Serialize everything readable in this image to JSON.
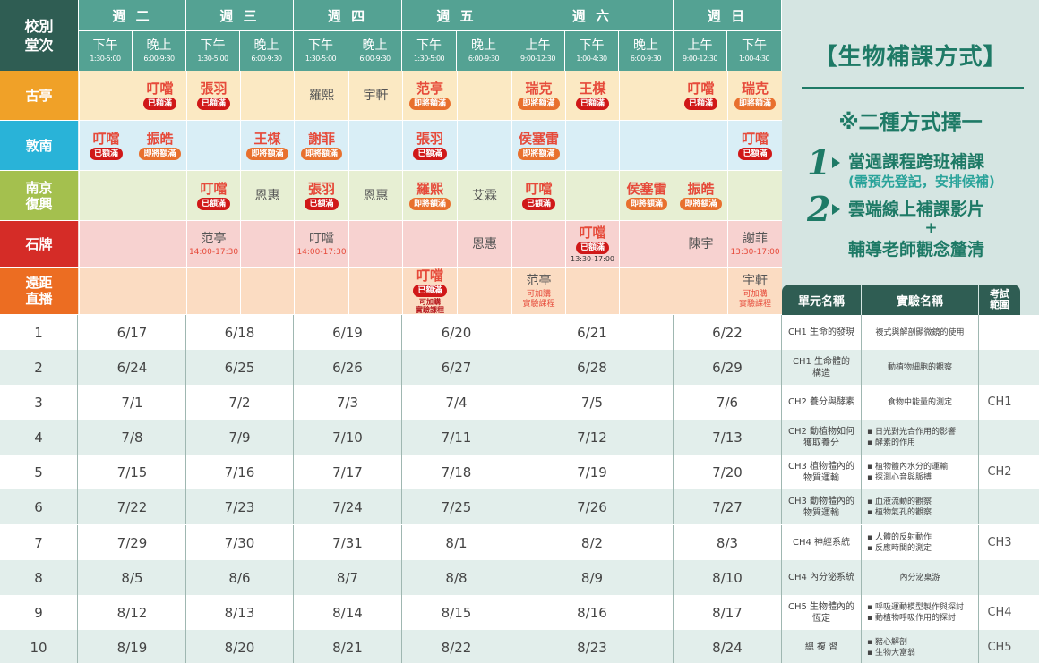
{
  "corner": "校別\n堂次",
  "days": [
    {
      "label": "週 二",
      "sessions": [
        {
          "name": "下午",
          "time": "1:30-5:00"
        },
        {
          "name": "晚上",
          "time": "6:00-9:30"
        }
      ]
    },
    {
      "label": "週 三",
      "sessions": [
        {
          "name": "下午",
          "time": "1:30-5:00"
        },
        {
          "name": "晚上",
          "time": "6:00-9:30"
        }
      ]
    },
    {
      "label": "週 四",
      "sessions": [
        {
          "name": "下午",
          "time": "1:30-5:00"
        },
        {
          "name": "晚上",
          "time": "6:00-9:30"
        }
      ]
    },
    {
      "label": "週 五",
      "sessions": [
        {
          "name": "下午",
          "time": "1:30-5:00"
        },
        {
          "name": "晚上",
          "time": "6:00-9:30"
        }
      ]
    },
    {
      "label": "週 六",
      "sessions": [
        {
          "name": "上午",
          "time": "9:00-12:30"
        },
        {
          "name": "下午",
          "time": "1:00-4:30"
        },
        {
          "name": "晚上",
          "time": "6:00-9:30"
        }
      ]
    },
    {
      "label": "週 日",
      "sessions": [
        {
          "name": "上午",
          "time": "9:00-12:30"
        },
        {
          "name": "下午",
          "time": "1:00-4:30"
        }
      ]
    }
  ],
  "campuses": [
    {
      "name": "古亭",
      "color": "#f0a128",
      "bg": "#fbe9c3",
      "cells": [
        null,
        {
          "t": "叮噹",
          "b": "已額滿",
          "bt": "full"
        },
        {
          "t": "張羽",
          "b": "已額滿",
          "bt": "full"
        },
        null,
        {
          "t": "羅熙",
          "plain": true
        },
        {
          "t": "宇軒",
          "plain": true
        },
        {
          "t": "范亭",
          "b": "即將額滿",
          "bt": "near"
        },
        null,
        {
          "t": "瑞克",
          "b": "即將額滿",
          "bt": "near"
        },
        {
          "t": "王楳",
          "b": "已額滿",
          "bt": "full"
        },
        null,
        {
          "t": "叮噹",
          "b": "已額滿",
          "bt": "full"
        },
        {
          "t": "瑞克",
          "b": "即將額滿",
          "bt": "near"
        }
      ]
    },
    {
      "name": "敦南",
      "color": "#29b3d8",
      "bg": "#d9eef6",
      "cells": [
        {
          "t": "叮噹",
          "b": "已額滿",
          "bt": "full"
        },
        {
          "t": "振皓",
          "b": "即將額滿",
          "bt": "near"
        },
        null,
        {
          "t": "王楳",
          "b": "即將額滿",
          "bt": "near"
        },
        {
          "t": "謝菲",
          "b": "即將額滿",
          "bt": "near"
        },
        null,
        {
          "t": "張羽",
          "b": "已額滿",
          "bt": "full"
        },
        null,
        {
          "t": "侯塞雷",
          "b": "即將額滿",
          "bt": "near"
        },
        null,
        null,
        null,
        {
          "t": "叮噹",
          "b": "已額滿",
          "bt": "full"
        }
      ]
    },
    {
      "name": "南京\n復興",
      "color": "#a4c04e",
      "bg": "#e7efd3",
      "cells": [
        null,
        null,
        {
          "t": "叮噹",
          "b": "已額滿",
          "bt": "full"
        },
        {
          "t": "恩惠",
          "plain": true
        },
        {
          "t": "張羽",
          "b": "已額滿",
          "bt": "full"
        },
        {
          "t": "恩惠",
          "plain": true
        },
        {
          "t": "羅熙",
          "b": "即將額滿",
          "bt": "near"
        },
        {
          "t": "艾霖",
          "plain": true
        },
        {
          "t": "叮噹",
          "b": "已額滿",
          "bt": "full"
        },
        null,
        {
          "t": "侯塞雷",
          "b": "即將額滿",
          "bt": "near"
        },
        {
          "t": "振皓",
          "b": "即將額滿",
          "bt": "near"
        },
        null
      ]
    },
    {
      "name": "石牌",
      "color": "#d52c27",
      "bg": "#f7d2d0",
      "cells": [
        null,
        null,
        {
          "t": "范亭",
          "plain": true,
          "x": "14:00-17:30"
        },
        null,
        {
          "t": "叮噹",
          "plain": true,
          "x": "14:00-17:30"
        },
        null,
        null,
        {
          "t": "恩惠",
          "plain": true
        },
        null,
        {
          "t": "叮噹",
          "b": "已額滿",
          "bt": "full",
          "xd": "13:30-17:00"
        },
        null,
        {
          "t": "陳宇",
          "plain": true
        },
        {
          "t": "謝菲",
          "plain": true,
          "x": "13:30-17:00"
        }
      ]
    },
    {
      "name": "遠距\n直播",
      "color": "#ec6d22",
      "bg": "#fbdcc2",
      "cells": [
        null,
        null,
        null,
        null,
        null,
        null,
        {
          "t": "叮噹",
          "b": "已額滿",
          "bt": "full",
          "x2": "可加購\n實驗課程"
        },
        null,
        {
          "t": "范亭",
          "plain": true,
          "x": "可加購\n實驗課程"
        },
        null,
        null,
        null,
        {
          "t": "宇軒",
          "plain": true,
          "x": "可加購\n實驗課程"
        }
      ]
    }
  ],
  "schedule_rows": [
    {
      "n": "1",
      "dates": [
        "6/17",
        "6/18",
        "6/19",
        "6/20",
        "6/21",
        "6/22"
      ],
      "unit": "CH1 生命的發現",
      "exp": [
        "複式與解剖顯微鏡的使用"
      ],
      "range": ""
    },
    {
      "n": "2",
      "dates": [
        "6/24",
        "6/25",
        "6/26",
        "6/27",
        "6/28",
        "6/29"
      ],
      "unit": "CH1 生命體的\n構造",
      "exp": [
        "動植物細胞的觀察"
      ],
      "range": ""
    },
    {
      "n": "3",
      "dates": [
        "7/1",
        "7/2",
        "7/3",
        "7/4",
        "7/5",
        "7/6"
      ],
      "unit": "CH2 養分與酵素",
      "exp": [
        "食物中能量的測定"
      ],
      "range": "CH1"
    },
    {
      "n": "4",
      "dates": [
        "7/8",
        "7/9",
        "7/10",
        "7/11",
        "7/12",
        "7/13"
      ],
      "unit": "CH2 動植物如何\n獲取養分",
      "exp": [
        "日光對光合作用的影響",
        "酵素的作用"
      ],
      "range": ""
    },
    {
      "n": "5",
      "dates": [
        "7/15",
        "7/16",
        "7/17",
        "7/18",
        "7/19",
        "7/20"
      ],
      "unit": "CH3 植物體內的\n物質運輸",
      "exp": [
        "植物體內水分的運輸",
        "探測心音與脈搏"
      ],
      "range": "CH2"
    },
    {
      "n": "6",
      "dates": [
        "7/22",
        "7/23",
        "7/24",
        "7/25",
        "7/26",
        "7/27"
      ],
      "unit": "CH3 動物體內的\n物質運輸",
      "exp": [
        "血液流動的觀察",
        "植物氣孔的觀察"
      ],
      "range": ""
    },
    {
      "n": "7",
      "dates": [
        "7/29",
        "7/30",
        "7/31",
        "8/1",
        "8/2",
        "8/3"
      ],
      "unit": "CH4 神經系統",
      "exp": [
        "人體的反射動作",
        "反應時間的測定"
      ],
      "range": "CH3"
    },
    {
      "n": "8",
      "dates": [
        "8/5",
        "8/6",
        "8/7",
        "8/8",
        "8/9",
        "8/10"
      ],
      "unit": "CH4 內分泌系統",
      "exp": [
        "內分泌桌游"
      ],
      "range": ""
    },
    {
      "n": "9",
      "dates": [
        "8/12",
        "8/13",
        "8/14",
        "8/15",
        "8/16",
        "8/17"
      ],
      "unit": "CH5 生物體內的\n恆定",
      "exp": [
        "呼吸運動模型製作與探討",
        "動植物呼吸作用的探討"
      ],
      "range": "CH4"
    },
    {
      "n": "10",
      "dates": [
        "8/19",
        "8/20",
        "8/21",
        "8/22",
        "8/23",
        "8/24"
      ],
      "unit": "總 複 習",
      "exp": [
        "豬心解剖",
        "生物大富翁"
      ],
      "range": "CH5"
    }
  ],
  "table_headers": {
    "unit": "單元名稱",
    "exp": "實驗名稱",
    "range": "考試\n範圍"
  },
  "side": {
    "title": "【生物補課方式】",
    "subtitle": "※二種方式擇一",
    "opt1_num": "1",
    "opt1_text": "當週課程跨班補課",
    "opt1_note": "(需預先登記，安排候補)",
    "opt2_num": "2",
    "opt2_text": "雲端線上補課影片",
    "opt2_plus": "+",
    "opt2_text2": "輔導老師觀念釐清"
  },
  "colors": {
    "header": "#54a293",
    "header_dark": "#2f5d53",
    "title": "#1e7a66",
    "full": "#d01818",
    "near": "#e8702e"
  }
}
